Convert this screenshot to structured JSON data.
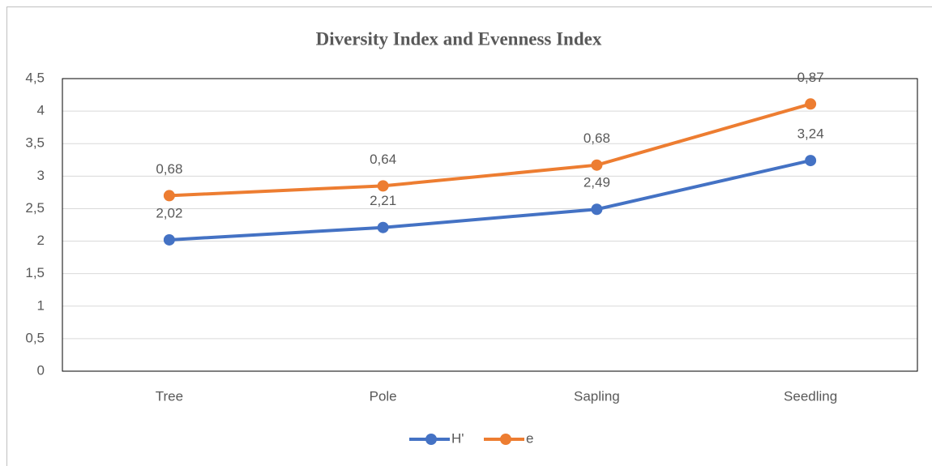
{
  "chart_data": {
    "type": "line",
    "stacked": true,
    "title": "Diversity Index and Evenness Index",
    "categories": [
      "Tree",
      "Pole",
      "Sapling",
      "Seedling"
    ],
    "series": [
      {
        "name": "H'",
        "color": "#4472c4",
        "values": [
          2.02,
          2.21,
          2.49,
          3.24
        ],
        "value_labels": [
          "2,02",
          "2,21",
          "2,49",
          "3,24"
        ]
      },
      {
        "name": "e",
        "color": "#ed7d31",
        "values": [
          0.68,
          0.64,
          0.68,
          0.87
        ],
        "value_labels": [
          "0,68",
          "0,64",
          "0,68",
          "0,87"
        ]
      }
    ],
    "ylim": [
      0,
      4.5
    ],
    "yticks": [
      0,
      {
        "value": 0.5,
        "label": "0,5"
      },
      1,
      {
        "value": 1.5,
        "label": "1,5"
      },
      2,
      {
        "value": 2.5,
        "label": "2,5"
      },
      3,
      {
        "value": 3.5,
        "label": "3,5"
      },
      4,
      {
        "value": 4.5,
        "label": "4,5"
      }
    ],
    "grid": true,
    "legend": "bottom"
  }
}
